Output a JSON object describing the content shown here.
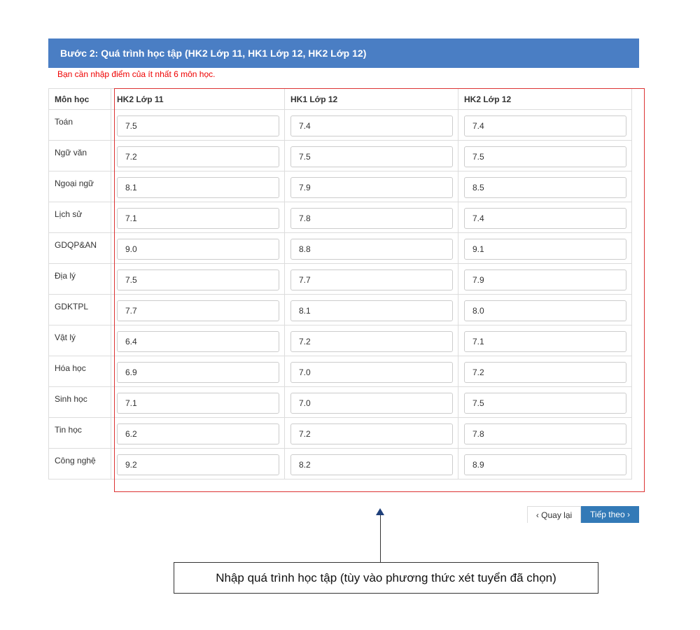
{
  "header": {
    "title": "Bước 2: Quá trình học tập (HK2 Lớp 11, HK1 Lớp 12, HK2 Lớp 12)"
  },
  "warning": "Bạn cần nhập điểm của ít nhất 6 môn học.",
  "table": {
    "columns": [
      "Môn học",
      "HK2 Lớp 11",
      "HK1 Lớp 12",
      "HK2 Lớp 12"
    ],
    "rows": [
      {
        "subject": "Toán",
        "scores": [
          "7.5",
          "7.4",
          "7.4"
        ]
      },
      {
        "subject": "Ngữ văn",
        "scores": [
          "7.2",
          "7.5",
          "7.5"
        ]
      },
      {
        "subject": "Ngoại ngữ",
        "scores": [
          "8.1",
          "7.9",
          "8.5"
        ]
      },
      {
        "subject": "Lịch sử",
        "scores": [
          "7.1",
          "7.8",
          "7.4"
        ]
      },
      {
        "subject": "GDQP&AN",
        "scores": [
          "9.0",
          "8.8",
          "9.1"
        ]
      },
      {
        "subject": "Địa lý",
        "scores": [
          "7.5",
          "7.7",
          "7.9"
        ]
      },
      {
        "subject": "GDKTPL",
        "scores": [
          "7.7",
          "8.1",
          "8.0"
        ]
      },
      {
        "subject": "Vật lý",
        "scores": [
          "6.4",
          "7.2",
          "7.1"
        ]
      },
      {
        "subject": "Hóa học",
        "scores": [
          "6.9",
          "7.0",
          "7.2"
        ]
      },
      {
        "subject": "Sinh học",
        "scores": [
          "7.1",
          "7.0",
          "7.5"
        ]
      },
      {
        "subject": "Tin học",
        "scores": [
          "6.2",
          "7.2",
          "7.8"
        ]
      },
      {
        "subject": "Công nghệ",
        "scores": [
          "9.2",
          "8.2",
          "8.9"
        ]
      }
    ]
  },
  "buttons": {
    "back": "Quay lại",
    "next": "Tiếp theo",
    "back_icon": "chevron-left",
    "next_icon": "chevron-right"
  },
  "callout": "Nhập quá trình học tập (tùy vào phương thức xét tuyển đã chọn)",
  "colors": {
    "header": "#4a7ec4",
    "next_button": "#337ab7",
    "warning": "#e00000",
    "highlight_box": "#dd3333"
  }
}
